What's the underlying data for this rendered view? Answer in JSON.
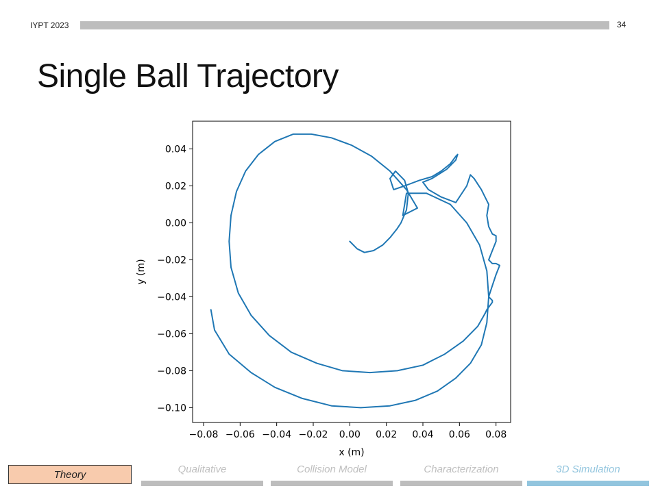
{
  "header": {
    "event": "IYPT 2023",
    "slide_number": "34"
  },
  "slide_title": "Single Ball Trajectory",
  "nav": {
    "active": "Theory",
    "items": [
      "Qualitative",
      "Collision Model",
      "Characterization",
      "3D Simulation"
    ],
    "current_index": 3
  },
  "colors": {
    "line": "#1f77b4",
    "nav_active": "#f8cbad",
    "nav_current": "#92c5de",
    "nav_inactive": "#bdbdbd"
  },
  "chart_data": {
    "type": "line",
    "xlabel": "x (m)",
    "ylabel": "y (m)",
    "xlim": [
      -0.086,
      0.088
    ],
    "ylim": [
      -0.108,
      0.055
    ],
    "xticks": [
      -0.08,
      -0.06,
      -0.04,
      -0.02,
      0.0,
      0.02,
      0.04,
      0.06,
      0.08
    ],
    "xtick_labels": [
      "−0.08",
      "−0.06",
      "−0.04",
      "−0.02",
      "0.00",
      "0.02",
      "0.04",
      "0.06",
      "0.08"
    ],
    "yticks": [
      0.04,
      0.02,
      0.0,
      -0.02,
      -0.04,
      -0.06,
      -0.08,
      -0.1
    ],
    "ytick_labels": [
      "0.04",
      "0.02",
      "0.00",
      "−0.02",
      "−0.04",
      "−0.06",
      "−0.08",
      "−0.10"
    ],
    "grid": false,
    "series": [
      {
        "x": [
          0.0,
          0.004,
          0.008,
          0.013,
          0.018,
          0.022,
          0.026,
          0.028,
          0.031,
          0.032,
          0.03,
          0.025,
          0.022,
          0.024,
          0.03,
          0.038,
          0.045,
          0.05,
          0.055,
          0.058,
          0.059,
          0.058,
          0.053,
          0.045,
          0.04,
          0.043,
          0.05,
          0.058,
          0.064,
          0.066,
          0.068,
          0.072,
          0.075,
          0.076,
          0.075,
          0.076,
          0.078,
          0.08,
          0.08,
          0.078,
          0.076,
          0.078,
          0.08,
          0.082,
          0.08,
          0.078,
          0.076,
          0.078,
          0.078,
          0.075,
          0.074
        ],
        "y": [
          -0.01,
          -0.014,
          -0.016,
          -0.015,
          -0.012,
          -0.008,
          -0.003,
          0.0,
          0.007,
          0.016,
          0.023,
          0.028,
          0.024,
          0.018,
          0.02,
          0.023,
          0.025,
          0.028,
          0.032,
          0.036,
          0.037,
          0.034,
          0.029,
          0.024,
          0.022,
          0.018,
          0.014,
          0.011,
          0.02,
          0.026,
          0.024,
          0.018,
          0.012,
          0.01,
          0.004,
          -0.002,
          -0.006,
          -0.007,
          -0.01,
          -0.015,
          -0.02,
          -0.022,
          -0.022,
          -0.023,
          -0.028,
          -0.034,
          -0.04,
          -0.042,
          -0.043,
          -0.047,
          -0.049
        ]
      },
      {
        "x": [
          0.074,
          0.07,
          0.062,
          0.052,
          0.04,
          0.026,
          0.011,
          -0.004,
          -0.018,
          -0.032,
          -0.044,
          -0.054,
          -0.061,
          -0.065,
          -0.066,
          -0.065,
          -0.062,
          -0.057,
          -0.05,
          -0.041,
          -0.031,
          -0.021,
          -0.01,
          0.001,
          0.012,
          0.022,
          0.031,
          0.037,
          0.029,
          0.031,
          0.042,
          0.055,
          0.064,
          0.071,
          0.075,
          0.076,
          0.075,
          0.072,
          0.066,
          0.058,
          0.048,
          0.036,
          0.022,
          0.006,
          -0.01,
          -0.026,
          -0.041,
          -0.054,
          -0.066,
          -0.074,
          -0.076
        ],
        "y": [
          -0.049,
          -0.056,
          -0.064,
          -0.071,
          -0.077,
          -0.08,
          -0.081,
          -0.08,
          -0.076,
          -0.07,
          -0.061,
          -0.05,
          -0.038,
          -0.024,
          -0.01,
          0.004,
          0.017,
          0.028,
          0.037,
          0.044,
          0.048,
          0.048,
          0.046,
          0.042,
          0.036,
          0.028,
          0.018,
          0.008,
          0.004,
          0.016,
          0.016,
          0.01,
          0.0,
          -0.012,
          -0.026,
          -0.04,
          -0.054,
          -0.066,
          -0.076,
          -0.084,
          -0.091,
          -0.096,
          -0.099,
          -0.1,
          -0.099,
          -0.095,
          -0.089,
          -0.081,
          -0.071,
          -0.058,
          -0.047
        ]
      }
    ]
  }
}
